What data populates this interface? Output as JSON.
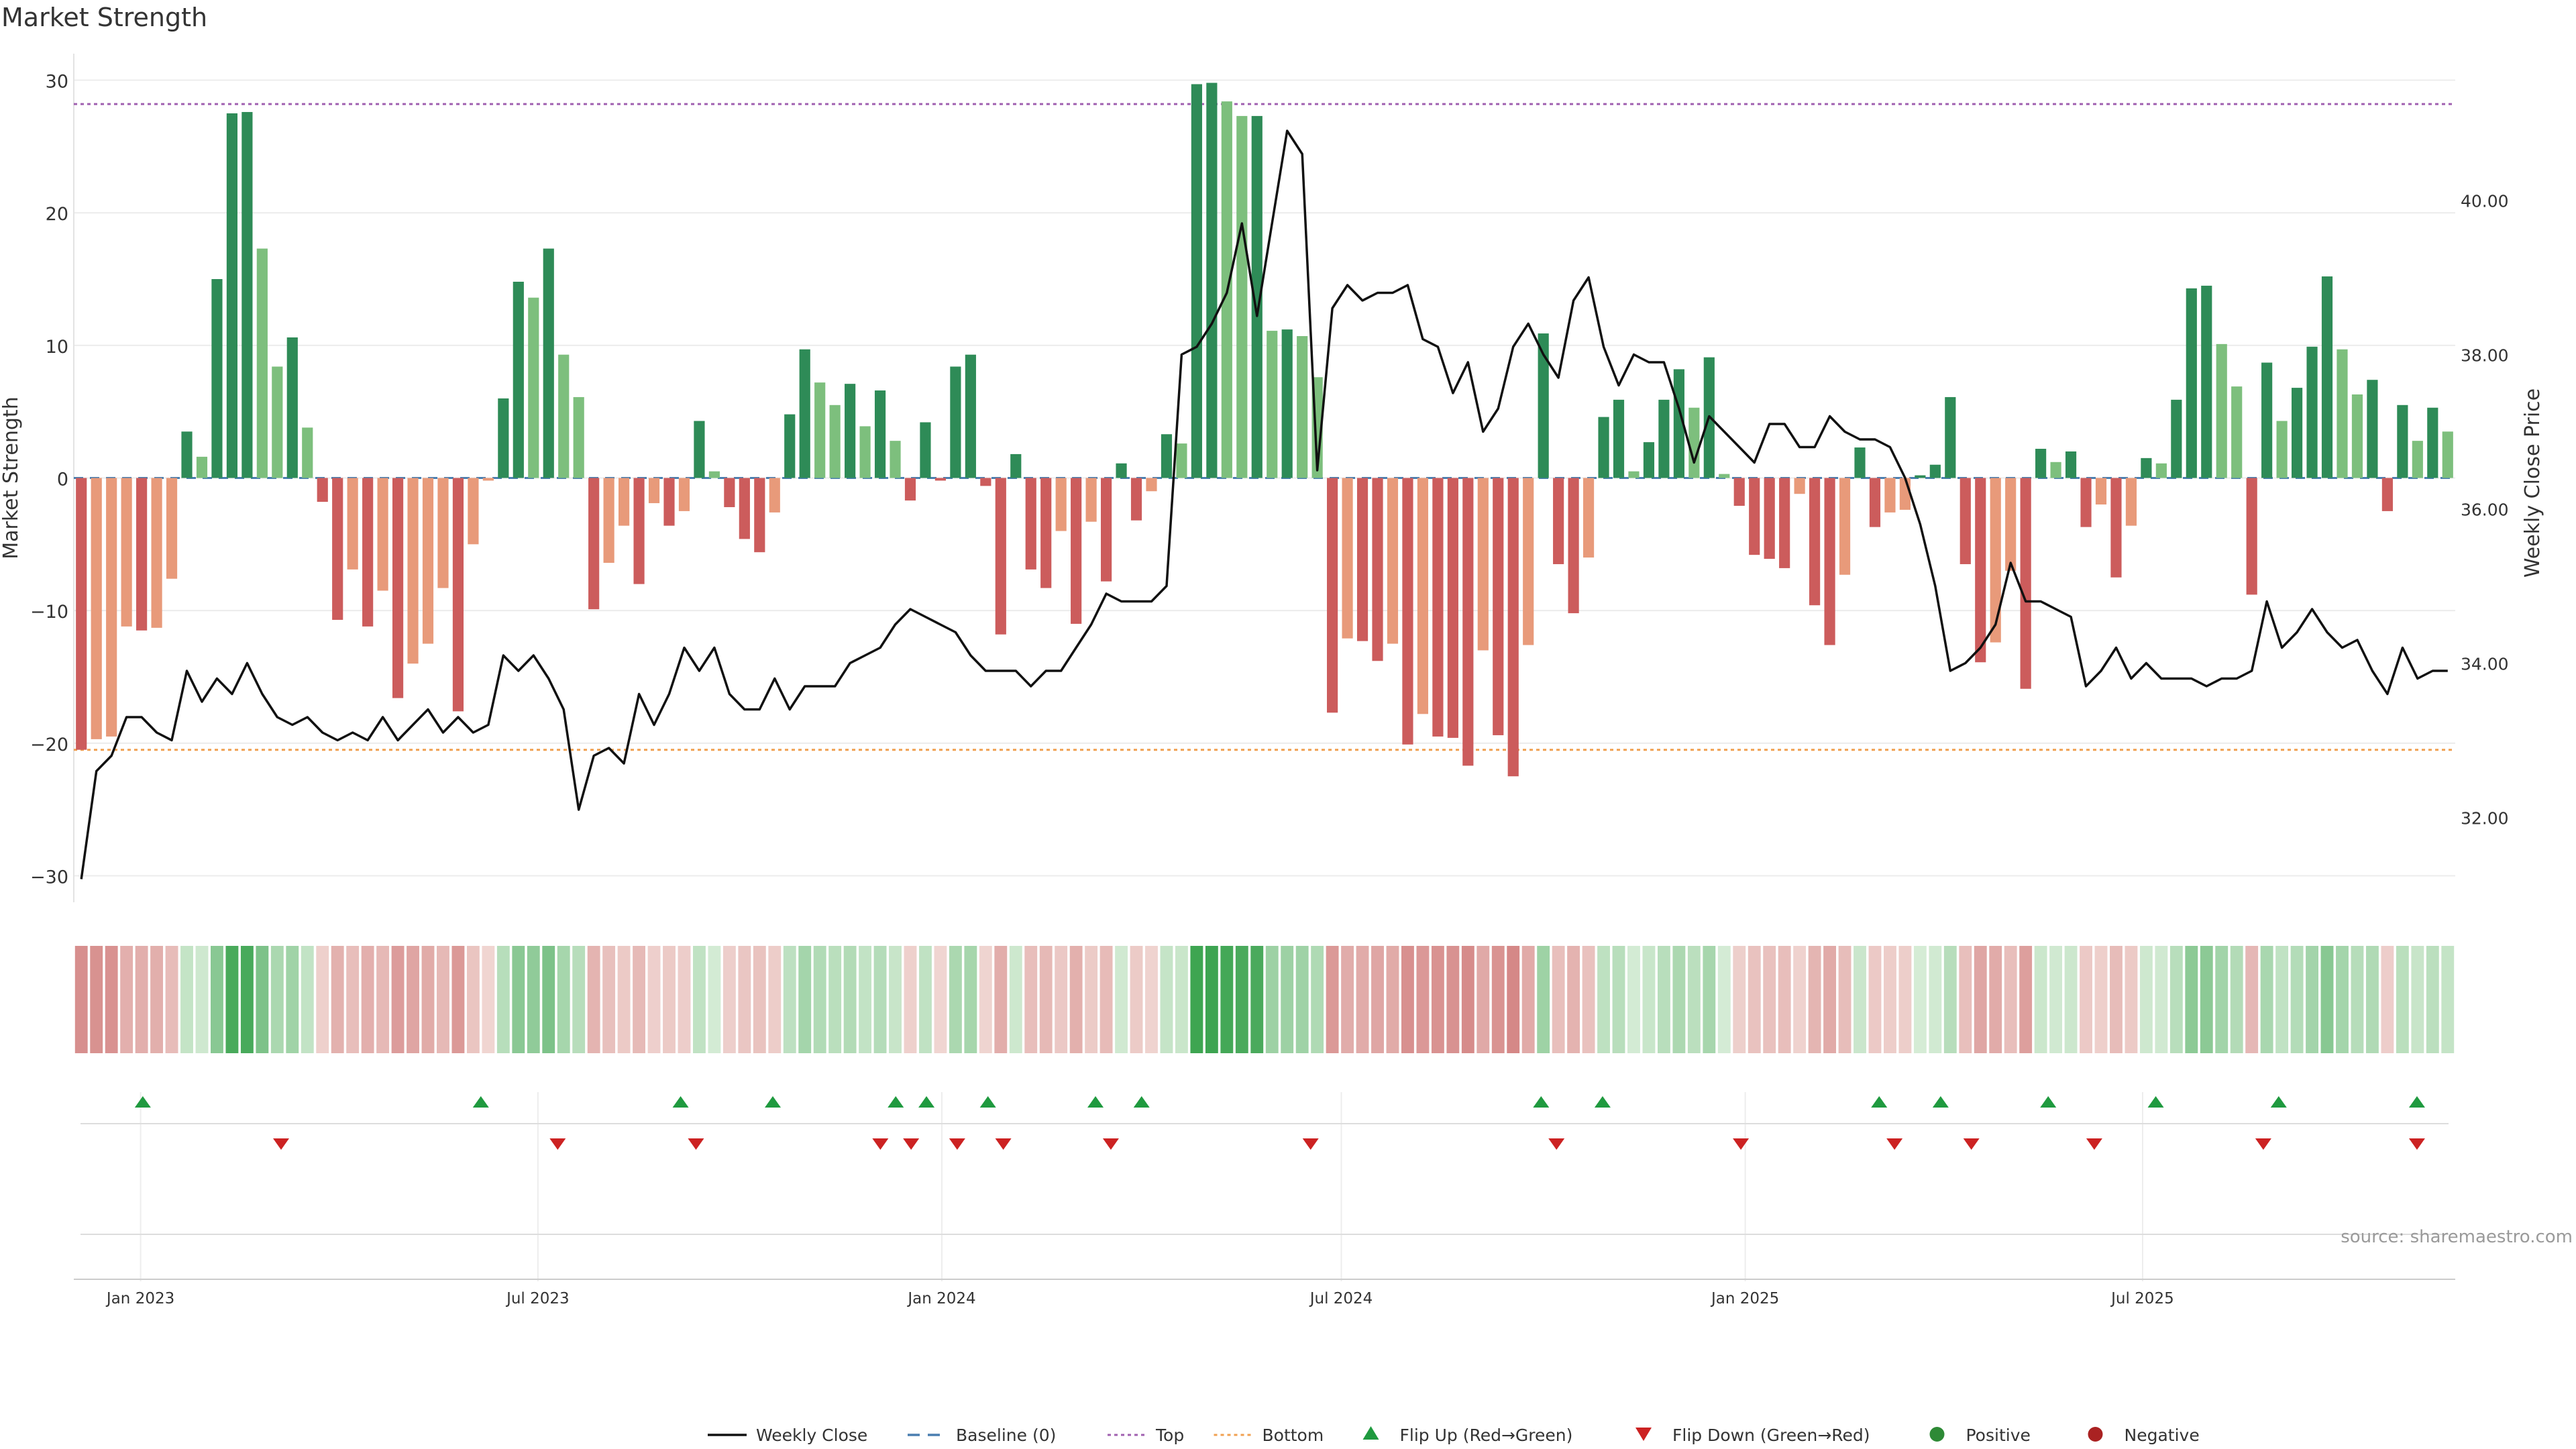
{
  "chart_data": {
    "type": "bar",
    "title": "Market Strength",
    "source": "source: sharemaestro.com",
    "ylabel": "Market Strength",
    "y2label": "Weekly Close Price",
    "ylim": [
      -32,
      32
    ],
    "y2lim": [
      30.9,
      41.9
    ],
    "yticks": [
      "-30",
      "-20",
      "-10",
      "0",
      "10",
      "20",
      "30"
    ],
    "y2ticks": [
      "32.00",
      "34.00",
      "36.00",
      "38.00",
      "40.00"
    ],
    "x_start": "2022-12-05",
    "x_end": "2025-11-17",
    "xticks": [
      {
        "date": "2023-01-01",
        "label": "Jan 2023"
      },
      {
        "date": "2023-07-01",
        "label": "Jul 2023"
      },
      {
        "date": "2024-01-01",
        "label": "Jan 2024"
      },
      {
        "date": "2024-07-01",
        "label": "Jul 2024"
      },
      {
        "date": "2025-01-01",
        "label": "Jan 2025"
      },
      {
        "date": "2025-07-01",
        "label": "Jul 2025"
      }
    ],
    "top_level": 28.2,
    "bottom_level": -20.5,
    "colors": {
      "close": "#111111",
      "baseline": "#4a7fb0",
      "top": "#a060b0",
      "bottom": "#f0a050",
      "flip_up": "#1f9a3f",
      "flip_down": "#cc2222",
      "positive": "#2e8a36",
      "negative": "#aa2222",
      "strong_green": "#2e8b57",
      "light_green": "#7dbf7d",
      "strong_red": "#cc5c5c",
      "light_red": "#e89a7a"
    },
    "legend": [
      {
        "label": "Weekly Close",
        "kind": "line"
      },
      {
        "label": "Baseline (0)",
        "kind": "dash"
      },
      {
        "label": "Top",
        "kind": "dot_top"
      },
      {
        "label": "Bottom",
        "kind": "dot_bottom"
      },
      {
        "label": "Flip Up (Red→Green)",
        "kind": "tri_up"
      },
      {
        "label": "Flip Down (Green→Red)",
        "kind": "tri_down"
      },
      {
        "label": "Positive",
        "kind": "dot_pos"
      },
      {
        "label": "Negative",
        "kind": "dot_neg"
      }
    ],
    "series": [
      {
        "name": "Market Strength",
        "values": [
          -20.5,
          -19.7,
          -19.5,
          -11.2,
          -11.5,
          -11.3,
          -7.6,
          3.5,
          1.6,
          15.0,
          27.5,
          27.6,
          17.3,
          8.4,
          10.6,
          3.8,
          -1.8,
          -10.7,
          -6.9,
          -11.2,
          -8.5,
          -16.6,
          -14.0,
          -12.5,
          -8.3,
          -17.6,
          -5.0,
          -0.2,
          6.0,
          14.8,
          13.6,
          17.3,
          9.3,
          6.1,
          -9.9,
          -6.4,
          -3.6,
          -8.0,
          -1.9,
          -3.6,
          -2.5,
          4.3,
          0.5,
          -2.2,
          -4.6,
          -5.6,
          -2.6,
          4.8,
          9.7,
          7.2,
          5.5,
          7.1,
          3.9,
          6.6,
          2.8,
          -1.7,
          4.2,
          -0.2,
          8.4,
          9.3,
          -0.6,
          -11.8,
          1.8,
          -6.9,
          -8.3,
          -4.0,
          -11.0,
          -3.3,
          -7.8,
          1.1,
          -3.2,
          -1.0,
          3.3,
          2.6,
          29.7,
          29.8,
          28.4,
          27.3,
          27.3,
          11.1,
          11.2,
          10.7,
          7.6,
          -17.7,
          -12.1,
          -12.3,
          -13.8,
          -12.5,
          -20.1,
          -17.8,
          -19.5,
          -19.6,
          -21.7,
          -13.0,
          -19.4,
          -22.5,
          -12.6,
          10.9,
          -6.5,
          -10.2,
          -6.0,
          4.6,
          5.9,
          0.5,
          2.7,
          5.9,
          8.2,
          5.3,
          9.1,
          0.3,
          -2.1,
          -5.8,
          -6.1,
          -6.8,
          -1.2,
          -9.6,
          -12.6,
          -7.3,
          2.3,
          -3.7,
          -2.6,
          -2.4,
          0.2,
          1.0,
          6.1,
          -6.5,
          -13.9,
          -12.4,
          -7.0,
          -15.9,
          2.2,
          1.2,
          2.0,
          -3.7,
          -2.0,
          -7.5,
          -3.6,
          1.5,
          1.1,
          5.9,
          14.3,
          14.5,
          10.1,
          6.9,
          -8.8,
          8.7,
          4.3,
          6.8,
          9.9,
          15.2,
          9.7,
          6.3,
          7.4,
          -2.5,
          5.5,
          2.8,
          5.3,
          3.5
        ]
      },
      {
        "name": "Weekly Close",
        "values": [
          31.2,
          32.6,
          32.8,
          33.3,
          33.3,
          33.1,
          33.0,
          33.9,
          33.5,
          33.8,
          33.6,
          34.0,
          33.6,
          33.3,
          33.2,
          33.3,
          33.1,
          33.0,
          33.1,
          33.0,
          33.3,
          33.0,
          33.2,
          33.4,
          33.1,
          33.3,
          33.1,
          33.2,
          34.1,
          33.9,
          34.1,
          33.8,
          33.4,
          32.1,
          32.8,
          32.9,
          32.7,
          33.6,
          33.2,
          33.6,
          34.2,
          33.9,
          34.2,
          33.6,
          33.4,
          33.4,
          33.8,
          33.4,
          33.7,
          33.7,
          33.7,
          34.0,
          34.1,
          34.2,
          34.5,
          34.7,
          34.6,
          34.5,
          34.4,
          34.1,
          33.9,
          33.9,
          33.9,
          33.7,
          33.9,
          33.9,
          34.2,
          34.5,
          34.9,
          34.8,
          34.8,
          34.8,
          35.0,
          38.0,
          38.1,
          38.4,
          38.8,
          39.7,
          38.5,
          39.7,
          40.9,
          40.6,
          36.5,
          38.6,
          38.9,
          38.7,
          38.8,
          38.8,
          38.9,
          38.2,
          38.1,
          37.5,
          37.9,
          37.0,
          37.3,
          38.1,
          38.4,
          38.0,
          37.7,
          38.7,
          39.0,
          38.1,
          37.6,
          38.0,
          37.9,
          37.9,
          37.3,
          36.6,
          37.2,
          37.0,
          36.8,
          36.6,
          37.1,
          37.1,
          36.8,
          36.8,
          37.2,
          37.0,
          36.9,
          36.9,
          36.8,
          36.4,
          35.8,
          35.0,
          33.9,
          34.0,
          34.2,
          34.5,
          35.3,
          34.8,
          34.8,
          34.7,
          34.6,
          33.7,
          33.9,
          34.2,
          33.8,
          34.0,
          33.8,
          33.8,
          33.8,
          33.7,
          33.8,
          33.8,
          33.9,
          34.8,
          34.2,
          34.4,
          34.7,
          34.4,
          34.2,
          34.3,
          33.9,
          33.6,
          34.2,
          33.8,
          33.9,
          33.9
        ]
      }
    ],
    "flip_up_dates": [
      "2023-01-02",
      "2023-06-05",
      "2023-09-04",
      "2023-10-16",
      "2023-12-11",
      "2023-12-25",
      "2024-01-22",
      "2024-03-11",
      "2024-04-01",
      "2024-09-30",
      "2024-10-28",
      "2025-03-03",
      "2025-03-31",
      "2025-05-19",
      "2025-07-07",
      "2025-09-01",
      "2025-11-03"
    ],
    "flip_down_dates": [
      "2023-03-06",
      "2023-07-10",
      "2023-09-11",
      "2023-12-04",
      "2023-12-18",
      "2024-01-08",
      "2024-01-29",
      "2024-03-18",
      "2024-06-17",
      "2024-10-07",
      "2024-12-30",
      "2025-03-10",
      "2025-04-14",
      "2025-06-09",
      "2025-08-25",
      "2025-11-03"
    ]
  }
}
